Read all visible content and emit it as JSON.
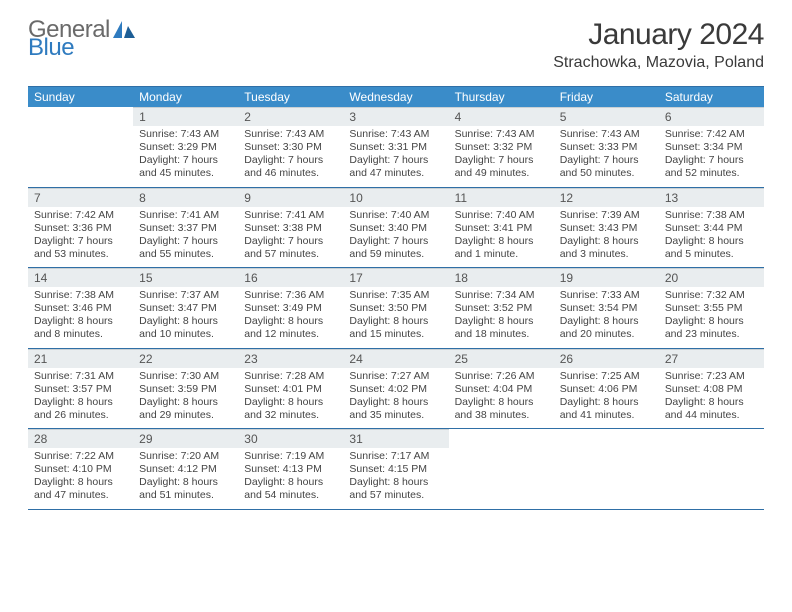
{
  "brand": {
    "word1": "General",
    "word2": "Blue"
  },
  "title": "January 2024",
  "location": "Strachowka, Mazovia, Poland",
  "colors": {
    "header_bg": "#3a8cc9",
    "header_text": "#ffffff",
    "daynum_bg": "#e9edef",
    "rule": "#2f6fa6",
    "logo_blue": "#2f7bbf",
    "logo_gray": "#6a6a6a"
  },
  "daysOfWeek": [
    "Sunday",
    "Monday",
    "Tuesday",
    "Wednesday",
    "Thursday",
    "Friday",
    "Saturday"
  ],
  "weeks": [
    [
      {
        "num": "",
        "lines": []
      },
      {
        "num": "1",
        "lines": [
          "Sunrise: 7:43 AM",
          "Sunset: 3:29 PM",
          "Daylight: 7 hours",
          "and 45 minutes."
        ]
      },
      {
        "num": "2",
        "lines": [
          "Sunrise: 7:43 AM",
          "Sunset: 3:30 PM",
          "Daylight: 7 hours",
          "and 46 minutes."
        ]
      },
      {
        "num": "3",
        "lines": [
          "Sunrise: 7:43 AM",
          "Sunset: 3:31 PM",
          "Daylight: 7 hours",
          "and 47 minutes."
        ]
      },
      {
        "num": "4",
        "lines": [
          "Sunrise: 7:43 AM",
          "Sunset: 3:32 PM",
          "Daylight: 7 hours",
          "and 49 minutes."
        ]
      },
      {
        "num": "5",
        "lines": [
          "Sunrise: 7:43 AM",
          "Sunset: 3:33 PM",
          "Daylight: 7 hours",
          "and 50 minutes."
        ]
      },
      {
        "num": "6",
        "lines": [
          "Sunrise: 7:42 AM",
          "Sunset: 3:34 PM",
          "Daylight: 7 hours",
          "and 52 minutes."
        ]
      }
    ],
    [
      {
        "num": "7",
        "lines": [
          "Sunrise: 7:42 AM",
          "Sunset: 3:36 PM",
          "Daylight: 7 hours",
          "and 53 minutes."
        ]
      },
      {
        "num": "8",
        "lines": [
          "Sunrise: 7:41 AM",
          "Sunset: 3:37 PM",
          "Daylight: 7 hours",
          "and 55 minutes."
        ]
      },
      {
        "num": "9",
        "lines": [
          "Sunrise: 7:41 AM",
          "Sunset: 3:38 PM",
          "Daylight: 7 hours",
          "and 57 minutes."
        ]
      },
      {
        "num": "10",
        "lines": [
          "Sunrise: 7:40 AM",
          "Sunset: 3:40 PM",
          "Daylight: 7 hours",
          "and 59 minutes."
        ]
      },
      {
        "num": "11",
        "lines": [
          "Sunrise: 7:40 AM",
          "Sunset: 3:41 PM",
          "Daylight: 8 hours",
          "and 1 minute."
        ]
      },
      {
        "num": "12",
        "lines": [
          "Sunrise: 7:39 AM",
          "Sunset: 3:43 PM",
          "Daylight: 8 hours",
          "and 3 minutes."
        ]
      },
      {
        "num": "13",
        "lines": [
          "Sunrise: 7:38 AM",
          "Sunset: 3:44 PM",
          "Daylight: 8 hours",
          "and 5 minutes."
        ]
      }
    ],
    [
      {
        "num": "14",
        "lines": [
          "Sunrise: 7:38 AM",
          "Sunset: 3:46 PM",
          "Daylight: 8 hours",
          "and 8 minutes."
        ]
      },
      {
        "num": "15",
        "lines": [
          "Sunrise: 7:37 AM",
          "Sunset: 3:47 PM",
          "Daylight: 8 hours",
          "and 10 minutes."
        ]
      },
      {
        "num": "16",
        "lines": [
          "Sunrise: 7:36 AM",
          "Sunset: 3:49 PM",
          "Daylight: 8 hours",
          "and 12 minutes."
        ]
      },
      {
        "num": "17",
        "lines": [
          "Sunrise: 7:35 AM",
          "Sunset: 3:50 PM",
          "Daylight: 8 hours",
          "and 15 minutes."
        ]
      },
      {
        "num": "18",
        "lines": [
          "Sunrise: 7:34 AM",
          "Sunset: 3:52 PM",
          "Daylight: 8 hours",
          "and 18 minutes."
        ]
      },
      {
        "num": "19",
        "lines": [
          "Sunrise: 7:33 AM",
          "Sunset: 3:54 PM",
          "Daylight: 8 hours",
          "and 20 minutes."
        ]
      },
      {
        "num": "20",
        "lines": [
          "Sunrise: 7:32 AM",
          "Sunset: 3:55 PM",
          "Daylight: 8 hours",
          "and 23 minutes."
        ]
      }
    ],
    [
      {
        "num": "21",
        "lines": [
          "Sunrise: 7:31 AM",
          "Sunset: 3:57 PM",
          "Daylight: 8 hours",
          "and 26 minutes."
        ]
      },
      {
        "num": "22",
        "lines": [
          "Sunrise: 7:30 AM",
          "Sunset: 3:59 PM",
          "Daylight: 8 hours",
          "and 29 minutes."
        ]
      },
      {
        "num": "23",
        "lines": [
          "Sunrise: 7:28 AM",
          "Sunset: 4:01 PM",
          "Daylight: 8 hours",
          "and 32 minutes."
        ]
      },
      {
        "num": "24",
        "lines": [
          "Sunrise: 7:27 AM",
          "Sunset: 4:02 PM",
          "Daylight: 8 hours",
          "and 35 minutes."
        ]
      },
      {
        "num": "25",
        "lines": [
          "Sunrise: 7:26 AM",
          "Sunset: 4:04 PM",
          "Daylight: 8 hours",
          "and 38 minutes."
        ]
      },
      {
        "num": "26",
        "lines": [
          "Sunrise: 7:25 AM",
          "Sunset: 4:06 PM",
          "Daylight: 8 hours",
          "and 41 minutes."
        ]
      },
      {
        "num": "27",
        "lines": [
          "Sunrise: 7:23 AM",
          "Sunset: 4:08 PM",
          "Daylight: 8 hours",
          "and 44 minutes."
        ]
      }
    ],
    [
      {
        "num": "28",
        "lines": [
          "Sunrise: 7:22 AM",
          "Sunset: 4:10 PM",
          "Daylight: 8 hours",
          "and 47 minutes."
        ]
      },
      {
        "num": "29",
        "lines": [
          "Sunrise: 7:20 AM",
          "Sunset: 4:12 PM",
          "Daylight: 8 hours",
          "and 51 minutes."
        ]
      },
      {
        "num": "30",
        "lines": [
          "Sunrise: 7:19 AM",
          "Sunset: 4:13 PM",
          "Daylight: 8 hours",
          "and 54 minutes."
        ]
      },
      {
        "num": "31",
        "lines": [
          "Sunrise: 7:17 AM",
          "Sunset: 4:15 PM",
          "Daylight: 8 hours",
          "and 57 minutes."
        ]
      },
      {
        "num": "",
        "lines": []
      },
      {
        "num": "",
        "lines": []
      },
      {
        "num": "",
        "lines": []
      }
    ]
  ]
}
